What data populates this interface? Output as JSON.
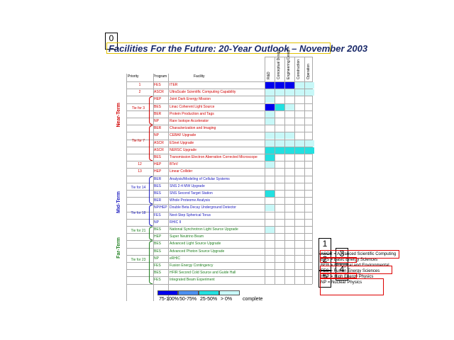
{
  "markers": [
    "0",
    "1",
    "2",
    "3",
    "4",
    "5"
  ],
  "title": "Facilities For the Future: 20-Year Outlook – November 2003",
  "headers": {
    "priority": "Priority",
    "program": "Program",
    "facility": "Facility",
    "phases": [
      "R&D",
      "Conceptual Design",
      "Engineering Design",
      "Construction",
      "Operation"
    ]
  },
  "terms": {
    "near": "Near-Term",
    "mid": "Mid-Term",
    "far": "Far-Term"
  },
  "ties": [
    {
      "label": "Tie for 3"
    },
    {
      "label": "Tie for 7"
    },
    {
      "label": "Tie for 14"
    },
    {
      "label": "Tie for 18"
    },
    {
      "label": "Tie for 21"
    },
    {
      "label": "Tie for 23"
    }
  ],
  "rows": [
    {
      "priority": "1",
      "program": "FES",
      "facility": "ITER",
      "color": "#d00000"
    },
    {
      "priority": "2",
      "program": "ASCR",
      "facility": "UltraScale Scientific Computing Capability",
      "color": "#d00000"
    },
    {
      "priority": "",
      "program": "HEP",
      "facility": "Joint Dark Energy Mission",
      "color": "#d00000"
    },
    {
      "priority": "",
      "program": "BES",
      "facility": "Linac Coherent Light Source",
      "color": "#d00000"
    },
    {
      "priority": "",
      "program": "BER",
      "facility": "Protein Production and Tags",
      "color": "#d00000"
    },
    {
      "priority": "",
      "program": "NP",
      "facility": "Rare Isotope Accelerator",
      "color": "#d00000"
    },
    {
      "priority": "",
      "program": "BER",
      "facility": "Characterization and Imaging",
      "color": "#d00000"
    },
    {
      "priority": "",
      "program": "NP",
      "facility": "CEBAF Upgrade",
      "color": "#d00000"
    },
    {
      "priority": "",
      "program": "ASCR",
      "facility": "ESnet Upgrade",
      "color": "#d00000"
    },
    {
      "priority": "",
      "program": "ASCR",
      "facility": "NERSC Upgrade",
      "color": "#d00000"
    },
    {
      "priority": "",
      "program": "BES",
      "facility": "Transmission Electron Aberration Corrected Microscope",
      "color": "#d00000"
    },
    {
      "priority": "12",
      "program": "HEP",
      "facility": "BTeV",
      "color": "#d00000"
    },
    {
      "priority": "13",
      "program": "HEP",
      "facility": "Linear Collider",
      "color": "#d00000"
    },
    {
      "priority": "",
      "program": "BER",
      "facility": "Analysis/Modeling of Cellular Systems",
      "color": "#2020c0"
    },
    {
      "priority": "",
      "program": "BES",
      "facility": "SNS 2-4 MW Upgrade",
      "color": "#2020c0"
    },
    {
      "priority": "",
      "program": "BES",
      "facility": "SNS Second Target Station",
      "color": "#2020c0"
    },
    {
      "priority": "",
      "program": "BER",
      "facility": "Whole Proteome Analysis",
      "color": "#2020c0"
    },
    {
      "priority": "",
      "program": "NP/HEP",
      "facility": "Double Beta Decay Underground Detector",
      "color": "#2020c0"
    },
    {
      "priority": "",
      "program": "FES",
      "facility": "Next-Step Spherical Torus",
      "color": "#2020c0"
    },
    {
      "priority": "",
      "program": "NP",
      "facility": "RHIC II",
      "color": "#2020c0"
    },
    {
      "priority": "",
      "program": "BES",
      "facility": "National Synchrotron Light Source Upgrade",
      "color": "#208020"
    },
    {
      "priority": "",
      "program": "HEP",
      "facility": "Super Neutrino Beam",
      "color": "#208020"
    },
    {
      "priority": "",
      "program": "BES",
      "facility": "Advanced Light Source Upgrade",
      "color": "#208020"
    },
    {
      "priority": "",
      "program": "BES",
      "facility": "Advanced Photon Source Upgrade",
      "color": "#208020"
    },
    {
      "priority": "",
      "program": "NP",
      "facility": "eRHIC",
      "color": "#208020"
    },
    {
      "priority": "",
      "program": "FES",
      "facility": "Fusion Energy Contingency",
      "color": "#208020"
    },
    {
      "priority": "",
      "program": "BES",
      "facility": "HFIR Second Cold Source and Guide Hall",
      "color": "#208020"
    },
    {
      "priority": "",
      "program": "FES",
      "facility": "Integrated Beam Experiment",
      "color": "#208020"
    }
  ],
  "legend": {
    "items": [
      {
        "label": "75-100%",
        "color": "#0000ee"
      },
      {
        "label": "50-75%",
        "color": "#4a90f0"
      },
      {
        "label": "25-50%",
        "color": "#22e0e0"
      },
      {
        "label": "> 0%",
        "color": "#c8f8f8"
      }
    ],
    "suffix": "complete"
  },
  "key": [
    "ASCR = Advanced Scientific Computing",
    "BES = Basic Energy Sciences",
    "BER = Biological and Environmental",
    "FES = Fusion Energy Sciences",
    "HEP = High Energy Physics",
    "NP = Nuclear Physics"
  ]
}
